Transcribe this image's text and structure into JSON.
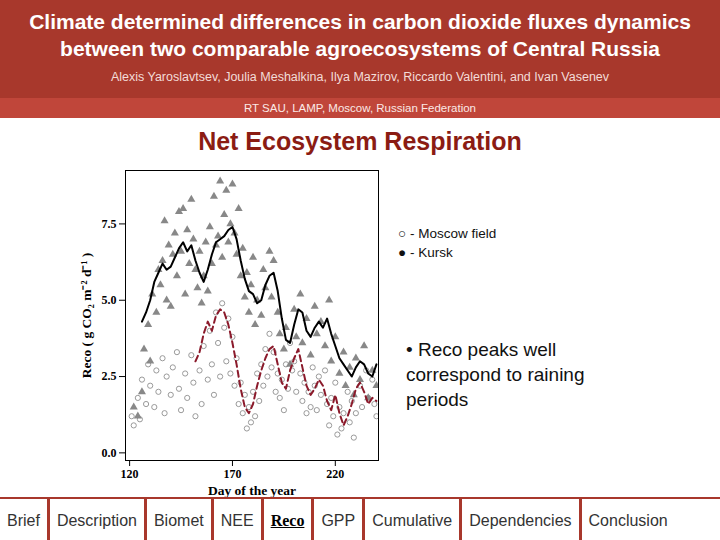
{
  "header": {
    "title": "Climate determined differences in carbon dioxide fluxes dynamics between two comparable agroecosystems of Central Russia",
    "authors": "Alexis Yaroslavtsev, Joulia Meshalkina, Ilya Mazirov, Riccardo Valentini, and Ivan Vasenev",
    "affiliation": "RT SAU, LAMP, Moscow, Russian Federation"
  },
  "heading": "Net Ecosystem Respiration",
  "nav": {
    "items": [
      "Brief",
      "Description",
      "Biomet",
      "NEE",
      "Reco",
      "GPP",
      "Cumulative",
      "Dependencies",
      "Conclusion"
    ],
    "active": "Reco"
  },
  "chart_data": {
    "type": "scatter",
    "x_label": "Day of the year",
    "y_label": "Reco ( g CO₂ m⁻² d⁻¹ )",
    "xlim": [
      118,
      241
    ],
    "ylim": [
      -0.25,
      9.25
    ],
    "xticks": [
      120,
      170,
      220
    ],
    "yticks": [
      {
        "value": 0,
        "label": "0.0"
      },
      {
        "value": 2.5,
        "label": "2.5"
      },
      {
        "value": 5,
        "label": "5.0"
      },
      {
        "value": 7.5,
        "label": "7.5"
      }
    ],
    "legend": "top-right",
    "annotations": [
      "• Reco peaks well correspond to raining periods"
    ],
    "series": [
      {
        "name": "○ - Moscow field",
        "type": "scatter",
        "marker": "circle",
        "color": "#9a9a9a",
        "x": [
          121,
          122,
          124,
          125,
          126,
          128,
          129,
          130,
          132,
          133,
          134,
          136,
          137,
          138,
          140,
          141,
          143,
          144,
          145,
          147,
          148,
          150,
          151,
          152,
          154,
          155,
          156,
          158,
          159,
          160,
          161,
          162,
          163,
          164,
          165,
          166,
          167,
          168,
          169,
          170,
          171,
          172,
          173,
          174,
          175,
          176,
          177,
          178,
          179,
          180,
          181,
          182,
          183,
          184,
          185,
          186,
          187,
          188,
          189,
          190,
          191,
          192,
          193,
          194,
          195,
          196,
          197,
          198,
          199,
          200,
          201,
          203,
          204,
          205,
          206,
          207,
          208,
          209,
          210,
          211,
          212,
          213,
          215,
          216,
          217,
          218,
          219,
          220,
          221,
          222,
          223,
          224,
          226,
          227,
          228,
          229,
          230,
          232,
          233,
          235,
          236,
          238,
          239,
          240
        ],
        "values": [
          1.2,
          0.9,
          1.8,
          1.1,
          2.4,
          1.6,
          2.9,
          2.2,
          1.5,
          2.7,
          2.0,
          3.1,
          1.3,
          2.5,
          1.9,
          2.8,
          3.3,
          2.1,
          1.4,
          2.6,
          1.8,
          3.2,
          2.3,
          1.2,
          2.7,
          1.6,
          3.5,
          2.4,
          4.0,
          2.9,
          1.9,
          4.6,
          3.6,
          2.5,
          4.9,
          4.1,
          3.0,
          4.4,
          2.6,
          3.8,
          2.2,
          3.1,
          1.6,
          2.3,
          1.3,
          1.9,
          0.8,
          1.5,
          1.0,
          2.0,
          1.2,
          2.6,
          1.7,
          2.9,
          2.2,
          3.4,
          2.5,
          3.9,
          2.8,
          3.3,
          2.0,
          2.6,
          1.8,
          2.4,
          1.4,
          2.9,
          2.1,
          3.6,
          2.7,
          3.0,
          2.0,
          2.6,
          1.7,
          2.3,
          1.3,
          2.0,
          1.5,
          2.8,
          2.2,
          1.4,
          2.5,
          1.9,
          2.7,
          1.6,
          0.9,
          1.8,
          1.2,
          2.3,
          0.6,
          1.5,
          0.8,
          1.3,
          2.0,
          1.0,
          1.7,
          0.5,
          1.3,
          2.2,
          1.5,
          2.7,
          1.8,
          2.4,
          1.6,
          1.2
        ]
      },
      {
        "name": "● - Kursk",
        "type": "scatter",
        "marker": "triangle",
        "color": "#888888",
        "x": [
          122,
          124,
          126,
          127,
          129,
          130,
          131,
          133,
          134,
          135,
          136,
          137,
          138,
          139,
          140,
          141,
          142,
          143,
          144,
          145,
          146,
          147,
          148,
          149,
          150,
          151,
          152,
          153,
          154,
          155,
          156,
          157,
          158,
          159,
          160,
          161,
          162,
          163,
          164,
          165,
          166,
          167,
          168,
          169,
          170,
          171,
          172,
          173,
          174,
          175,
          176,
          177,
          178,
          179,
          180,
          181,
          182,
          184,
          185,
          186,
          188,
          189,
          190,
          192,
          193,
          195,
          196,
          198,
          200,
          201,
          203,
          204,
          206,
          208,
          210,
          211,
          213,
          215,
          217,
          218,
          220,
          222,
          224,
          225,
          227,
          229,
          230,
          232,
          234,
          236,
          238,
          240
        ],
        "values": [
          1.5,
          1.2,
          2.0,
          3.4,
          4.2,
          3.0,
          5.2,
          4.6,
          6.0,
          5.5,
          6.3,
          7.6,
          5.0,
          6.8,
          4.8,
          6.5,
          7.2,
          5.8,
          7.9,
          6.6,
          8.0,
          5.2,
          7.3,
          6.2,
          8.3,
          7.0,
          6.0,
          5.4,
          6.6,
          4.9,
          5.8,
          6.9,
          5.3,
          7.4,
          6.2,
          8.4,
          6.8,
          7.1,
          8.9,
          6.4,
          7.8,
          8.6,
          6.9,
          7.5,
          8.8,
          7.2,
          6.5,
          8.0,
          5.8,
          6.7,
          5.1,
          5.9,
          4.6,
          5.5,
          6.4,
          4.2,
          5.0,
          4.5,
          6.0,
          5.4,
          6.6,
          5.1,
          6.3,
          4.6,
          3.9,
          3.4,
          4.1,
          2.9,
          4.7,
          3.8,
          5.2,
          3.6,
          4.4,
          3.2,
          4.8,
          3.9,
          4.3,
          3.5,
          5.0,
          3.0,
          3.8,
          2.6,
          3.3,
          2.2,
          2.8,
          1.9,
          3.1,
          2.4,
          3.5,
          1.8,
          2.7,
          2.2
        ]
      },
      {
        "type": "line",
        "line_style": "solid",
        "color": "#000000",
        "x": [
          126,
          128,
          130,
          132,
          134,
          136,
          138,
          140,
          142,
          144,
          146,
          148,
          150,
          152,
          154,
          156,
          158,
          160,
          162,
          164,
          166,
          168,
          170,
          172,
          174,
          176,
          178,
          180,
          182,
          184,
          186,
          188,
          190,
          192,
          194,
          196,
          198,
          200,
          202,
          204,
          206,
          208,
          210,
          212,
          214,
          216,
          218,
          220,
          222,
          224,
          226,
          228,
          230,
          232,
          234,
          236,
          238,
          240
        ],
        "values": [
          4.3,
          4.6,
          5.0,
          5.6,
          5.9,
          6.2,
          6.0,
          6.1,
          6.4,
          6.7,
          6.9,
          6.6,
          6.8,
          6.3,
          5.9,
          5.6,
          6.0,
          6.5,
          6.9,
          7.0,
          7.1,
          7.3,
          7.4,
          7.0,
          6.3,
          5.7,
          5.3,
          5.2,
          4.9,
          5.0,
          5.5,
          5.8,
          5.9,
          5.3,
          4.4,
          3.7,
          3.6,
          4.2,
          4.7,
          4.6,
          4.0,
          3.8,
          4.1,
          4.3,
          4.1,
          4.4,
          3.9,
          3.5,
          3.1,
          2.9,
          2.7,
          2.5,
          2.8,
          3.0,
          2.9,
          2.6,
          2.5,
          2.9
        ]
      },
      {
        "type": "line",
        "line_style": "dashed",
        "color": "#8b1a2b",
        "x": [
          152,
          154,
          156,
          158,
          160,
          162,
          164,
          166,
          168,
          170,
          172,
          174,
          176,
          178,
          180,
          182,
          184,
          186,
          188,
          190,
          192,
          194,
          196,
          198,
          200,
          202,
          204,
          206,
          208,
          210,
          212,
          214,
          216,
          218,
          220,
          222,
          224,
          226,
          228,
          230,
          232,
          234,
          236,
          238,
          240
        ],
        "values": [
          3.0,
          3.3,
          3.9,
          4.3,
          4.0,
          4.5,
          4.7,
          4.6,
          4.2,
          3.6,
          2.9,
          2.1,
          1.5,
          1.3,
          1.6,
          2.2,
          2.7,
          3.1,
          3.4,
          3.5,
          2.9,
          2.3,
          2.1,
          2.7,
          3.1,
          3.4,
          2.8,
          2.2,
          1.9,
          2.1,
          2.4,
          2.2,
          1.7,
          1.4,
          1.9,
          1.3,
          0.9,
          1.2,
          1.6,
          2.1,
          2.3,
          2.0,
          1.6,
          1.8,
          1.7
        ]
      }
    ]
  }
}
